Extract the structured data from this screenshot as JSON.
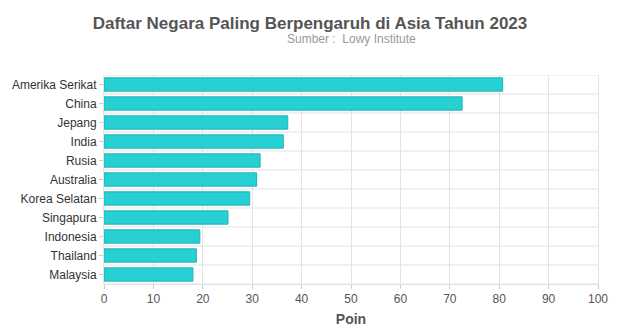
{
  "chart_data": {
    "type": "bar",
    "orientation": "horizontal",
    "title": "Daftar Negara Paling Berpengaruh di Asia Tahun 2023",
    "subtitle": "Sumber :  Lowy Institute",
    "x_label": "Poin",
    "categories": [
      "Amerika Serikat",
      "China",
      "Jepang",
      "India",
      "Rusia",
      "Australia",
      "Korea Selatan",
      "Singapura",
      "Indonesia",
      "Thailand",
      "Malaysia"
    ],
    "values": [
      80.7,
      72.5,
      37.2,
      36.3,
      31.6,
      30.9,
      29.5,
      25.1,
      19.4,
      18.7,
      18.0
    ],
    "color": "#26d0d3",
    "xlim": [
      0,
      100
    ],
    "xticks": [
      0,
      10,
      20,
      30,
      40,
      50,
      60,
      70,
      80,
      90,
      100
    ],
    "grid": true
  }
}
